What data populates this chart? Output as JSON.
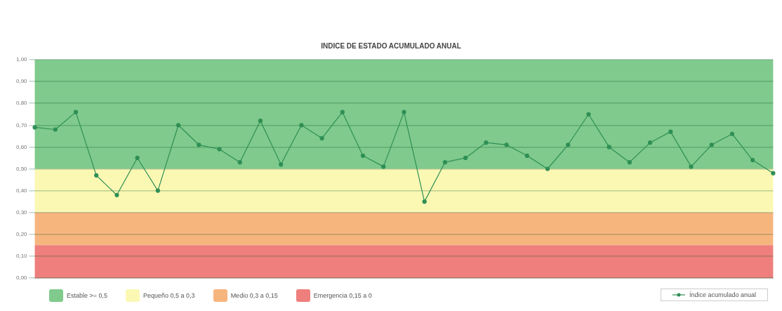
{
  "chart_data": {
    "type": "line",
    "title": "INDICE DE ESTADO ACUMULADO ANUAL",
    "categories": [
      null,
      null,
      null,
      null,
      null,
      null,
      null,
      null,
      null,
      null,
      null,
      null,
      null,
      null,
      null,
      null,
      null,
      null,
      null,
      null,
      null,
      null,
      null,
      null,
      null,
      null,
      null,
      null,
      null,
      null,
      null,
      null,
      null,
      null,
      null,
      null,
      null
    ],
    "series": [
      {
        "name": "Índice acumulado anual",
        "color": "#2f8f55",
        "values": [
          0.69,
          0.68,
          0.76,
          0.47,
          0.38,
          0.55,
          0.4,
          0.7,
          0.61,
          0.59,
          0.53,
          0.72,
          0.52,
          0.7,
          0.64,
          0.76,
          0.56,
          0.51,
          0.76,
          0.35,
          0.53,
          0.55,
          0.62,
          0.61,
          0.56,
          0.5,
          0.61,
          0.75,
          0.6,
          0.53,
          0.62,
          0.67,
          0.51,
          0.61,
          0.66,
          0.54,
          0.48
        ]
      }
    ],
    "ylim": [
      0,
      1
    ],
    "yticks": [
      {
        "value": 0,
        "label": "0,00"
      },
      {
        "value": 0.1,
        "label": "0,10"
      },
      {
        "value": 0.2,
        "label": "0,20"
      },
      {
        "value": 0.3,
        "label": "0,30"
      },
      {
        "value": 0.4,
        "label": "0,40"
      },
      {
        "value": 0.5,
        "label": "0,50"
      },
      {
        "value": 0.6,
        "label": "0,60"
      },
      {
        "value": 0.7,
        "label": "0,70"
      },
      {
        "value": 0.8,
        "label": "0,80"
      },
      {
        "value": 0.9,
        "label": "0,90"
      },
      {
        "value": 1,
        "label": "1,00"
      }
    ],
    "bands": [
      {
        "axis": "y",
        "from": 0.5,
        "to": 1,
        "label": "Estable >= 0,5",
        "color": "#7fca8c"
      },
      {
        "axis": "y",
        "from": 0.3,
        "to": 0.5,
        "label": "Pequeño 0,5 a 0,3",
        "color": "#fbf8b4"
      },
      {
        "axis": "y",
        "from": 0.15,
        "to": 0.3,
        "label": "Medio 0,3 a 0,15",
        "color": "#f7b57e"
      },
      {
        "axis": "y",
        "from": 0,
        "to": 0.15,
        "label": "Emergencia 0,15 a 0",
        "color": "#ee7f7c"
      }
    ],
    "grid": "y",
    "legend": "bottom right",
    "marker": "circle",
    "line_style": "solid"
  }
}
